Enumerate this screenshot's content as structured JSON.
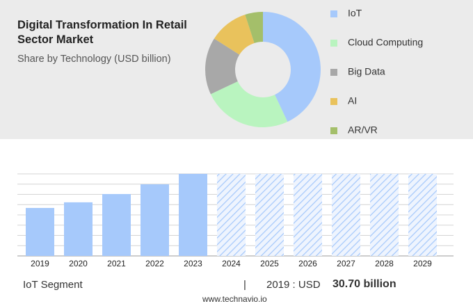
{
  "chart_data": [
    {
      "type": "pie",
      "donut": true,
      "title": "Digital Transformation In Retail Sector Market",
      "subtitle": "Share by Technology (USD billion)",
      "categories": [
        "IoT",
        "Cloud Computing",
        "Big Data",
        "AI",
        "AR/VR"
      ],
      "values": [
        43,
        25,
        16,
        11,
        5
      ],
      "colors": [
        "#a6c9fb",
        "#b9f4bf",
        "#a8a8a8",
        "#e9c25c",
        "#a4bf6a"
      ]
    },
    {
      "type": "bar",
      "categories": [
        "2019",
        "2020",
        "2021",
        "2022",
        "2023",
        "2024",
        "2025",
        "2026",
        "2027",
        "2028",
        "2029"
      ],
      "values": [
        30.7,
        34.3,
        39.6,
        45.8,
        52.5,
        null,
        null,
        null,
        null,
        null,
        null
      ],
      "color": "#a6c9fb",
      "ylim": [
        0,
        52.5
      ],
      "grid": true
    }
  ],
  "footer": {
    "segment": "IoT Segment",
    "separator": "|",
    "year_label": "2019 : USD",
    "value_label": "30.70 billion",
    "website": "www.technavio.io"
  }
}
